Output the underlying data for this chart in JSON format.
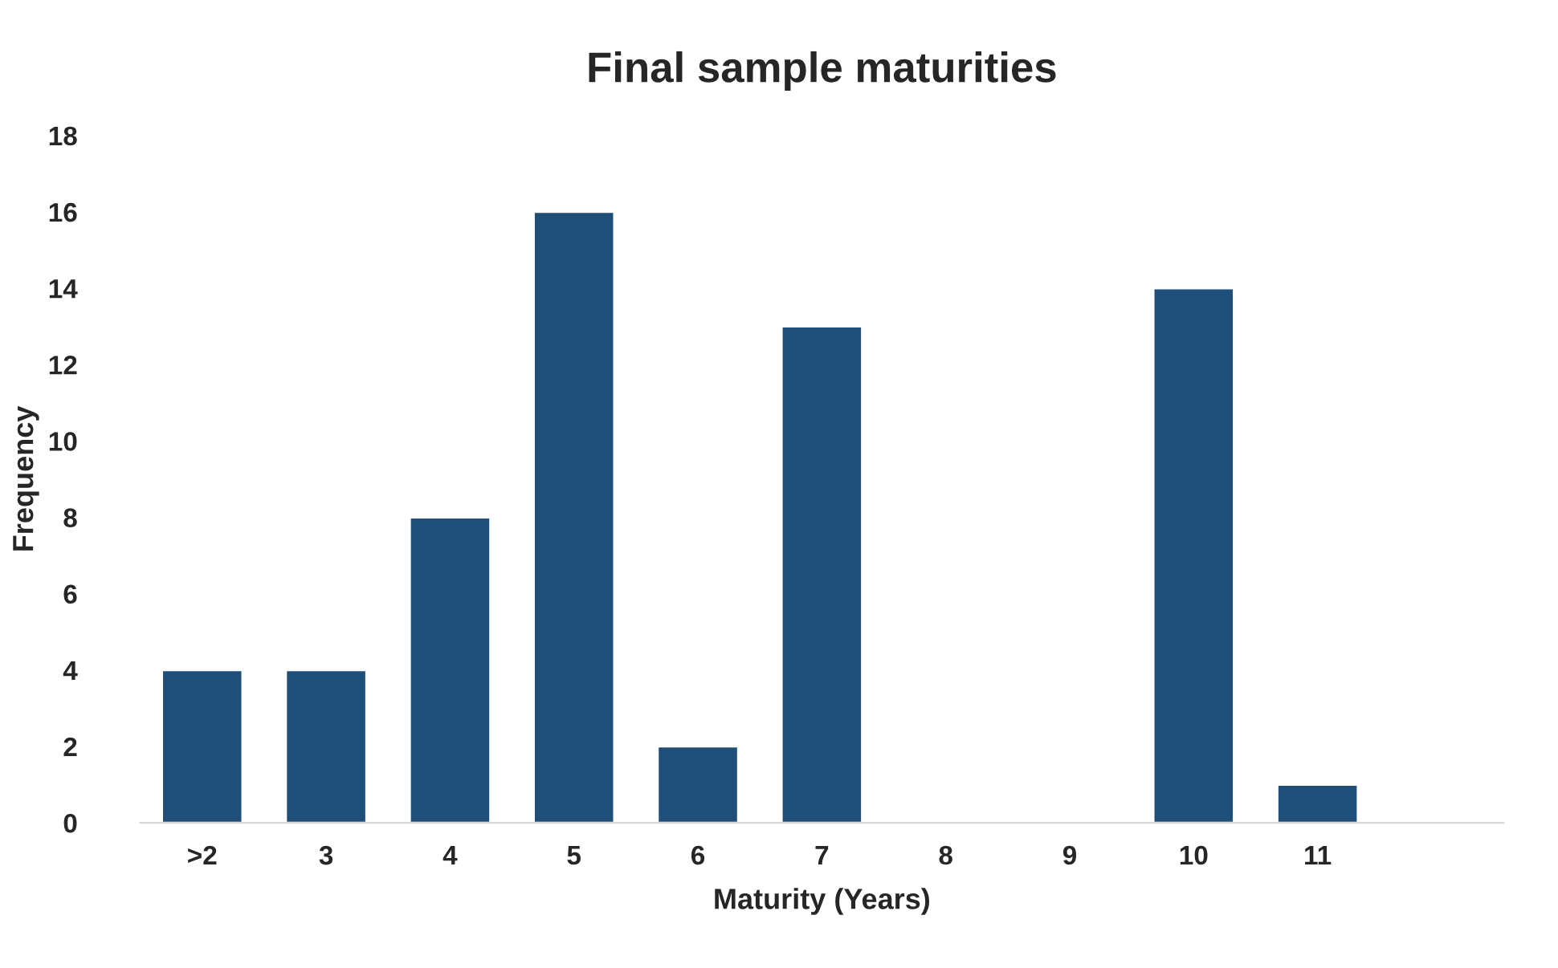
{
  "chart_data": {
    "type": "bar",
    "title": "Final sample maturities",
    "xlabel": "Maturity (Years)",
    "ylabel": "Frequency",
    "categories": [
      ">2",
      "3",
      "4",
      "5",
      "6",
      "7",
      "8",
      "9",
      "10",
      "11",
      null
    ],
    "values": [
      4,
      4,
      8,
      16,
      2,
      13,
      null,
      null,
      14,
      1,
      null
    ],
    "color": "#1f4e79",
    "ylim": [
      0,
      18
    ],
    "yticks": [
      0,
      2,
      4,
      6,
      8,
      10,
      12,
      14,
      16,
      18
    ],
    "grid": false,
    "legend": false
  }
}
